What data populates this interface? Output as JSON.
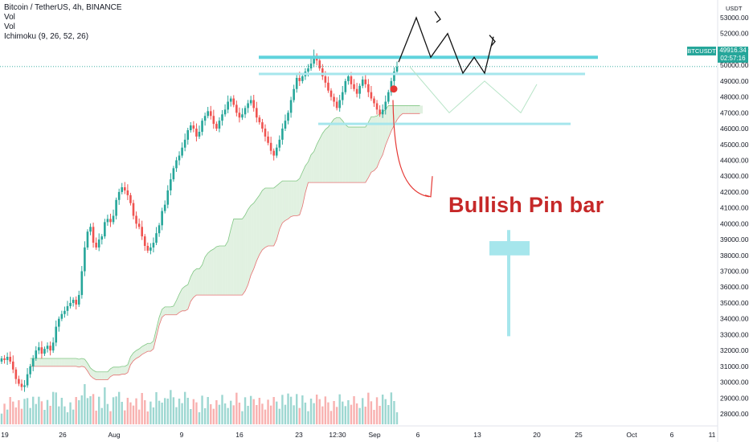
{
  "legend": {
    "symbol_line": "Bitcoin / TetherUS, 4h, BINANCE",
    "vol1": "Vol",
    "vol2": "Vol",
    "ichimoku": "Ichimoku (9, 26, 52, 26)"
  },
  "price_tag": {
    "symbol": "BTCUSDT",
    "price": "49916.34",
    "countdown": "02:57:16"
  },
  "annotation": "Bullish Pin bar",
  "price_axis_unit": "USDT",
  "colors": {
    "bull": "#26a69a",
    "bear": "#ef5350",
    "cloud_bull": "#c8e6c9",
    "cloud_bear": "#ffcdd2",
    "level": "#5fd3dc",
    "level_light": "#a6e6ec",
    "annotation": "#c62828"
  },
  "chart_data": {
    "type": "candlestick",
    "title": "Bitcoin / TetherUS, 4h, BINANCE",
    "price_ticks": [
      "53000.00",
      "52000.00",
      "51000.00",
      "50000.00",
      "49000.00",
      "48000.00",
      "47000.00",
      "46000.00",
      "45000.00",
      "44000.00",
      "43000.00",
      "42000.00",
      "41000.00",
      "40000.00",
      "39000.00",
      "38000.00",
      "37000.00",
      "36000.00",
      "35000.00",
      "34000.00",
      "33000.00",
      "32000.00",
      "31000.00",
      "30000.00",
      "29000.00",
      "28000.00"
    ],
    "time_ticks": [
      "19",
      "26",
      "Aug",
      "9",
      "16",
      "23",
      "12:30",
      "Sep",
      "6",
      "13",
      "20",
      "25",
      "Oct",
      "6",
      "11"
    ],
    "ylim": [
      27500,
      53500
    ],
    "last_price": 49916.34,
    "levels": [
      {
        "price": 50500,
        "from": "Aug 21",
        "to": "Sep 28",
        "style": "thick"
      },
      {
        "price": 49450,
        "from": "Aug 20",
        "to": "Sep 28",
        "style": "thin"
      },
      {
        "price": 46300,
        "from": "Aug 25",
        "to": "Sep 24",
        "style": "thin"
      }
    ],
    "path_levels": [
      [
        50200,
        53000,
        50500,
        52000,
        49500,
        50500,
        49500,
        51800
      ],
      [
        49900,
        48500,
        47000,
        49000,
        47000,
        48800
      ]
    ],
    "signal_marker_price": 48500,
    "pin_bar": {
      "high": 39600,
      "low": 32900,
      "body_top": 38900,
      "body_bottom": 38000
    },
    "candle_closes": [
      31500,
      31400,
      31600,
      31300,
      30800,
      30200,
      29900,
      29700,
      29800,
      30500,
      31000,
      31500,
      32000,
      32200,
      31800,
      32100,
      32300,
      32000,
      32500,
      33500,
      34000,
      34300,
      34500,
      34800,
      35000,
      35200,
      34900,
      35500,
      37000,
      38500,
      39500,
      39800,
      38800,
      38500,
      39000,
      39200,
      40100,
      40300,
      40100,
      40500,
      41500,
      42000,
      42300,
      42100,
      41800,
      41300,
      40500,
      40000,
      39800,
      39200,
      38600,
      38300,
      38500,
      38800,
      39400,
      39900,
      40800,
      41200,
      42100,
      42800,
      43500,
      44000,
      44300,
      44800,
      45300,
      45900,
      46200,
      46000,
      45500,
      45800,
      46500,
      46800,
      47100,
      46800,
      46300,
      46000,
      46500,
      46900,
      47200,
      47700,
      47900,
      47500,
      47000,
      46700,
      46900,
      47300,
      47600,
      47800,
      47300,
      46700,
      46400,
      46000,
      45500,
      45100,
      44600,
      44300,
      44800,
      45300,
      46000,
      46500,
      47000,
      47800,
      48500,
      49200,
      49000,
      49300,
      49600,
      49800,
      50100,
      50600,
      50300,
      49800,
      49300,
      48900,
      48400,
      48000,
      47700,
      47300,
      47800,
      48300,
      49000,
      49300,
      48800,
      48500,
      48200,
      48700,
      49100,
      48800,
      48300,
      47900,
      47600,
      47200,
      46900,
      47200,
      47700,
      48300,
      49000,
      49600,
      49900
    ]
  }
}
